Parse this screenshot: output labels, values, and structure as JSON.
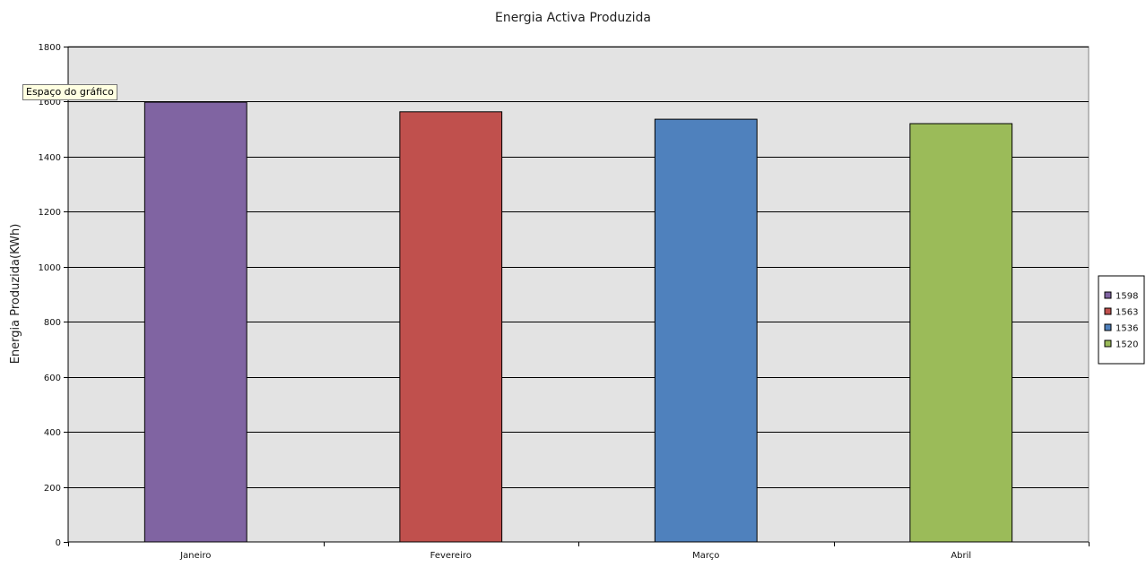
{
  "tooltip": "Espaço do gráfico",
  "colors": {
    "plot_background": "#e3e3e3",
    "gridline": "#000000",
    "bar_outline": "#000000"
  },
  "chart_data": {
    "type": "bar",
    "title": "Energia Activa Produzida",
    "xlabel": "",
    "ylabel": "Energia Produzida(KWh)",
    "categories": [
      "Janeiro",
      "Fevereiro",
      "Março",
      "Abril"
    ],
    "values": [
      1598,
      1563,
      1536,
      1520
    ],
    "colors": [
      "#8064a2",
      "#c0504d",
      "#4f81bd",
      "#9bbb59"
    ],
    "ylim": [
      0,
      1800
    ],
    "yticks": [
      0,
      200,
      400,
      600,
      800,
      1000,
      1200,
      1400,
      1600,
      1800
    ],
    "grid": true,
    "legend": {
      "position": "right",
      "entries": [
        "1598",
        "1563",
        "1536",
        "1520"
      ]
    }
  }
}
